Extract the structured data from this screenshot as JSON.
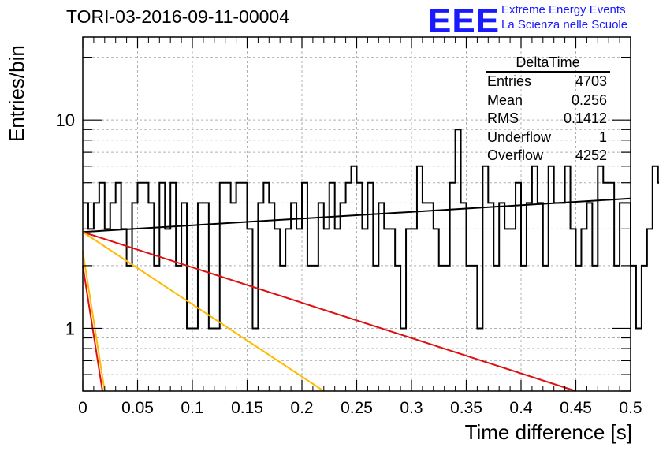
{
  "title": "TORI-03-2016-09-11-00004",
  "logo": {
    "mark": "EEE",
    "line1": "Extreme Energy Events",
    "line2": "La Scienza nelle Scuole"
  },
  "stats": {
    "name": "DeltaTime",
    "rows": [
      {
        "label": "Entries",
        "value": "4703"
      },
      {
        "label": "Mean",
        "value": "0.256"
      },
      {
        "label": "RMS",
        "value": "0.1412"
      },
      {
        "label": "Underflow",
        "value": "1"
      },
      {
        "label": "Overflow",
        "value": "4252"
      }
    ]
  },
  "chart_data": {
    "type": "histogram",
    "xlabel": "Time difference [s]",
    "ylabel": "Entries/bin",
    "xlim": [
      0,
      0.5
    ],
    "ylim": [
      0.5,
      25
    ],
    "yscale": "log",
    "grid": true,
    "xticks": [
      "0",
      "0.05",
      "0.1",
      "0.15",
      "0.2",
      "0.25",
      "0.3",
      "0.35",
      "0.4",
      "0.45",
      "0.5"
    ],
    "yticks": [
      "1",
      "10"
    ],
    "bin_width": 0.005,
    "histogram": {
      "color": "#000000",
      "values": [
        4,
        3,
        4,
        5,
        3,
        4,
        5,
        3,
        2,
        4,
        5,
        5,
        4,
        2,
        5,
        3,
        5,
        2,
        4,
        1,
        1,
        4,
        4,
        1,
        1,
        5,
        5,
        4,
        5,
        5,
        3,
        1,
        4,
        5,
        4,
        3,
        2,
        3,
        4,
        3,
        5,
        2,
        2,
        4,
        3,
        5,
        3,
        4,
        5,
        6,
        5,
        3,
        5,
        2,
        4,
        3,
        3,
        2,
        1,
        3,
        3,
        6,
        4,
        4,
        3,
        2,
        2,
        5,
        9,
        4,
        2,
        2,
        1,
        6,
        4,
        2,
        4,
        3,
        3,
        5,
        2,
        4,
        6,
        4,
        2,
        6,
        4,
        4,
        6,
        3,
        2,
        3,
        4,
        2,
        6,
        5,
        5,
        2,
        4,
        4,
        2,
        1,
        2,
        3,
        6,
        5,
        4,
        3,
        4,
        4,
        5,
        2,
        5,
        4,
        3,
        2,
        6,
        1,
        0,
        2,
        5,
        4,
        5,
        4,
        3,
        5,
        3,
        3,
        6,
        4,
        4,
        3,
        5,
        4,
        7,
        6,
        4,
        2,
        6,
        5,
        3,
        3,
        5,
        4,
        3,
        5,
        2,
        4,
        5,
        4,
        3,
        3,
        5,
        4,
        1,
        4,
        6,
        5,
        3,
        4,
        3,
        2,
        4,
        2,
        1,
        3,
        3,
        3,
        6,
        2,
        5,
        3,
        2,
        4,
        4,
        2,
        3,
        2,
        2,
        3,
        2,
        3,
        4,
        3,
        3,
        5,
        3,
        2,
        3,
        4,
        3,
        3,
        5,
        3,
        5,
        2,
        3,
        5,
        4,
        5
      ]
    },
    "series": [
      {
        "color": "#000000",
        "x": [
          0,
          0.5
        ],
        "y": [
          2.9,
          4.2
        ]
      },
      {
        "color": "#dd1111",
        "x": [
          0,
          0.45
        ],
        "y": [
          2.9,
          0.5
        ]
      },
      {
        "color": "#ffbb00",
        "x": [
          0,
          0.22
        ],
        "y": [
          2.9,
          0.5
        ]
      },
      {
        "color": "#ffbb00",
        "x": [
          0,
          0.02
        ],
        "y": [
          2.35,
          0.5
        ]
      },
      {
        "color": "#dd1111",
        "x": [
          0,
          0.018
        ],
        "y": [
          2.0,
          0.5
        ]
      }
    ]
  }
}
